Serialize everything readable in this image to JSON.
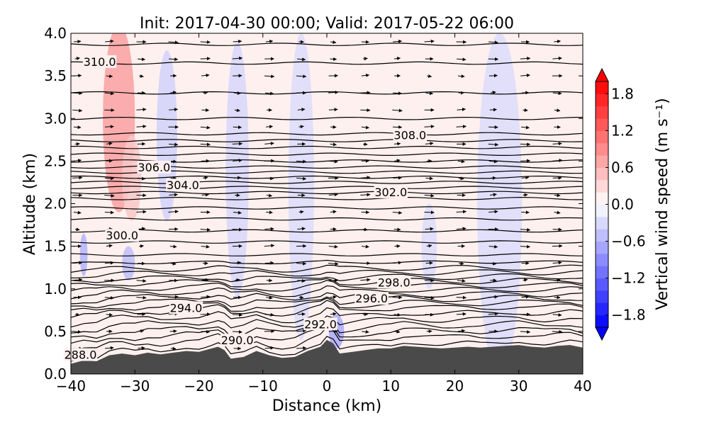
{
  "chart_data": {
    "type": "contour",
    "title": "Init: 2017-04-30 00:00; Valid: 2017-05-22 06:00",
    "xlabel": "Distance (km)",
    "ylabel": "Altitude (km)",
    "xlim": [
      -40,
      40
    ],
    "ylim": [
      0.0,
      4.0
    ],
    "xticks": [
      "−40",
      "−30",
      "−20",
      "−10",
      "0",
      "10",
      "20",
      "30",
      "40"
    ],
    "xtick_values": [
      -40,
      -30,
      -20,
      -10,
      0,
      10,
      20,
      30,
      40
    ],
    "yticks": [
      "0.0",
      "0.5",
      "1.0",
      "1.5",
      "2.0",
      "2.5",
      "3.0",
      "3.5",
      "4.0"
    ],
    "ytick_values": [
      0.0,
      0.5,
      1.0,
      1.5,
      2.0,
      2.5,
      3.0,
      3.5,
      4.0
    ],
    "terrain": {
      "color": "#4a4a4a",
      "points": [
        [
          -40,
          0.12
        ],
        [
          -38,
          0.16
        ],
        [
          -36,
          0.15
        ],
        [
          -34,
          0.22
        ],
        [
          -32,
          0.24
        ],
        [
          -30,
          0.22
        ],
        [
          -28,
          0.25
        ],
        [
          -26,
          0.23
        ],
        [
          -24,
          0.25
        ],
        [
          -22,
          0.27
        ],
        [
          -20,
          0.26
        ],
        [
          -18,
          0.3
        ],
        [
          -17,
          0.32
        ],
        [
          -16,
          0.28
        ],
        [
          -15,
          0.18
        ],
        [
          -13,
          0.2
        ],
        [
          -11,
          0.27
        ],
        [
          -9,
          0.22
        ],
        [
          -7,
          0.19
        ],
        [
          -5,
          0.2
        ],
        [
          -3,
          0.27
        ],
        [
          -1,
          0.32
        ],
        [
          0,
          0.4
        ],
        [
          1,
          0.36
        ],
        [
          2,
          0.24
        ],
        [
          4,
          0.26
        ],
        [
          6,
          0.28
        ],
        [
          8,
          0.3
        ],
        [
          10,
          0.3
        ],
        [
          12,
          0.33
        ],
        [
          14,
          0.32
        ],
        [
          16,
          0.31
        ],
        [
          18,
          0.3
        ],
        [
          20,
          0.31
        ],
        [
          22,
          0.32
        ],
        [
          24,
          0.31
        ],
        [
          26,
          0.32
        ],
        [
          28,
          0.33
        ],
        [
          30,
          0.34
        ],
        [
          32,
          0.32
        ],
        [
          34,
          0.31
        ],
        [
          36,
          0.33
        ],
        [
          38,
          0.34
        ],
        [
          40,
          0.31
        ]
      ]
    },
    "contours": {
      "levels": [
        288,
        289,
        290,
        291,
        292,
        293,
        294,
        294.5,
        295,
        295.5,
        296,
        296.5,
        297,
        297.5,
        298,
        298.5,
        299,
        299.5,
        300,
        300.5,
        301,
        301.5,
        302,
        302.5,
        303,
        303.5,
        304,
        304.5,
        305,
        305.5,
        306,
        306.5,
        307,
        307.5,
        308,
        309,
        310,
        310.5
      ],
      "base_heights": [
        0.18,
        0.28,
        0.36,
        0.44,
        0.52,
        0.6,
        0.68,
        0.74,
        0.8,
        0.86,
        0.92,
        0.98,
        1.04,
        1.1,
        1.16,
        1.22,
        1.3,
        1.4,
        1.55,
        1.68,
        1.82,
        1.95,
        2.06,
        2.13,
        2.19,
        2.25,
        2.31,
        2.37,
        2.43,
        2.5,
        2.58,
        2.66,
        2.74,
        2.82,
        3.0,
        3.3,
        3.65,
        3.87
      ],
      "labels": [
        {
          "text": "288.0",
          "x": -38.5,
          "y": 0.22
        },
        {
          "text": "290.0",
          "x": -14,
          "y": 0.39
        },
        {
          "text": "292.0",
          "x": -1,
          "y": 0.58
        },
        {
          "text": "294.0",
          "x": -22,
          "y": 0.77
        },
        {
          "text": "296.0",
          "x": 7,
          "y": 0.88
        },
        {
          "text": "298.0",
          "x": 10.5,
          "y": 1.07
        },
        {
          "text": "300.0",
          "x": -32,
          "y": 1.62
        },
        {
          "text": "302.0",
          "x": 10,
          "y": 2.13
        },
        {
          "text": "304.0",
          "x": -22.5,
          "y": 2.21
        },
        {
          "text": "306.0",
          "x": -27,
          "y": 2.42
        },
        {
          "text": "308.0",
          "x": 13,
          "y": 2.8
        },
        {
          "text": "310.0",
          "x": -35.5,
          "y": 3.66
        }
      ]
    },
    "shading": {
      "variable": "vertical wind speed",
      "background": "#fdf0ee",
      "patches": [
        {
          "x": -32.5,
          "y": 3.0,
          "rx": 2.5,
          "ry": 1.1,
          "value": 0.8
        },
        {
          "x": -30.5,
          "y": 2.3,
          "rx": 1.5,
          "ry": 0.5,
          "value": 0.4
        },
        {
          "x": -25,
          "y": 2.8,
          "rx": 1.6,
          "ry": 1.0,
          "value": -0.3
        },
        {
          "x": -14,
          "y": 2.4,
          "rx": 1.8,
          "ry": 1.5,
          "value": -0.25
        },
        {
          "x": -4,
          "y": 2.2,
          "rx": 2.0,
          "ry": 1.8,
          "value": -0.2
        },
        {
          "x": 27,
          "y": 2.0,
          "rx": 3.5,
          "ry": 2.0,
          "value": -0.2
        },
        {
          "x": -38,
          "y": 1.4,
          "rx": 0.6,
          "ry": 0.25,
          "value": -0.6
        },
        {
          "x": -31,
          "y": 1.3,
          "rx": 1.0,
          "ry": 0.2,
          "value": -0.5
        },
        {
          "x": 1.5,
          "y": 0.5,
          "rx": 1.2,
          "ry": 0.2,
          "value": -0.7
        },
        {
          "x": 16,
          "y": 1.5,
          "rx": 1.2,
          "ry": 0.5,
          "value": -0.2
        }
      ]
    },
    "vectors": {
      "x_spacing_km": 5,
      "y_spacing_km": 0.2,
      "color": "#000000"
    },
    "colorbar": {
      "label": "Vertical wind speed (m s⁻¹)",
      "min": -2.0,
      "max": 2.0,
      "ticks": [
        "1.8",
        "1.2",
        "0.6",
        "0.0",
        "−0.6",
        "−1.2",
        "−1.8"
      ],
      "tick_values": [
        1.8,
        1.2,
        0.6,
        0.0,
        -0.6,
        -1.2,
        -1.8
      ],
      "colors": [
        "#0000ff",
        "#ff0000",
        "#ffffff"
      ],
      "extend": "both"
    }
  }
}
